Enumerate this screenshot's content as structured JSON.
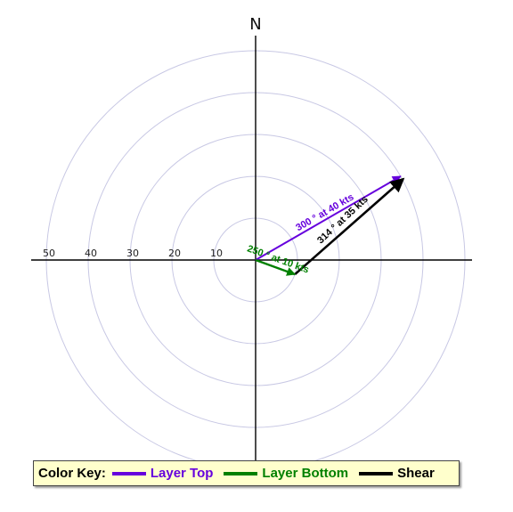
{
  "north_label": "N",
  "range_labels": [
    "50",
    "40",
    "30",
    "20",
    "10"
  ],
  "rings_kts": [
    10,
    20,
    30,
    40,
    50
  ],
  "vectors": {
    "bottom": {
      "dir_deg": 250,
      "speed_kts": 10,
      "label": "250 ° at 10 kts",
      "color": "#008000"
    },
    "top": {
      "dir_deg": 300,
      "speed_kts": 40,
      "label": "300 ° at 40 kts",
      "color": "#6600dd"
    },
    "shear": {
      "dir_deg": 314,
      "speed_kts": 35,
      "label": "314 ° at 35 kts",
      "color": "#000000"
    }
  },
  "key": {
    "title": "Color Key:",
    "items": [
      {
        "label": "Layer Top",
        "color": "#6600dd"
      },
      {
        "label": "Layer Bottom",
        "color": "#008000"
      },
      {
        "label": "Shear",
        "color": "#000000"
      }
    ]
  }
}
